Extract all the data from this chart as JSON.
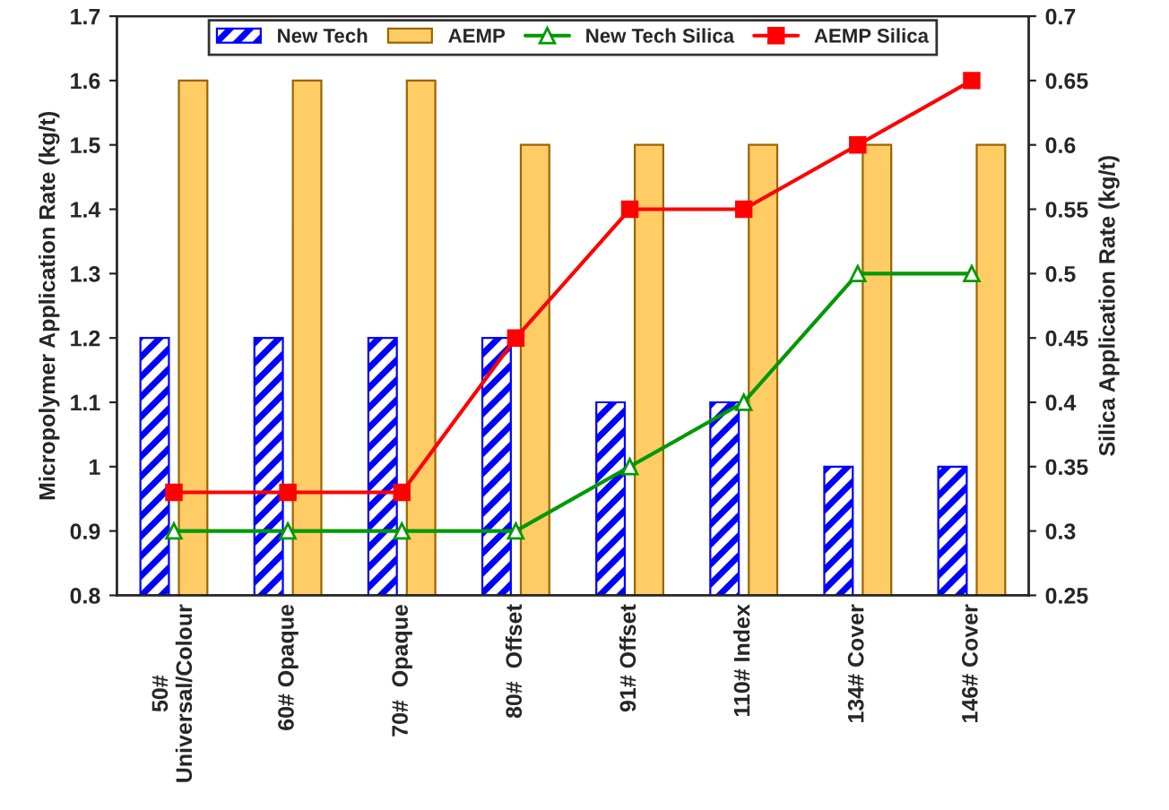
{
  "chart_data": {
    "type": "bar",
    "categories": [
      "50#\nUniversal/Colour",
      "60# Opaque",
      "70#  Opaque",
      "80#  Offset",
      "91# Offset",
      "110# Index",
      "134# Cover",
      "146# Cover"
    ],
    "ylabel": "Micropolymer Application Rate (kg/t)",
    "y2label": "Silica Application Rate (kg/t)",
    "ylim": [
      0.8,
      1.7
    ],
    "yticks": [
      0.8,
      0.9,
      1,
      1.1,
      1.2,
      1.3,
      1.4,
      1.5,
      1.6,
      1.7
    ],
    "y2lim": [
      0.25,
      0.7
    ],
    "y2ticks": [
      0.25,
      0.3,
      0.35,
      0.4,
      0.45,
      0.5,
      0.55,
      0.6,
      0.65,
      0.7
    ],
    "legend": "top",
    "grid": false,
    "series": [
      {
        "name": "New Tech",
        "color": "#0000ff",
        "values": [
          1.2,
          1.2,
          1.2,
          1.2,
          1.1,
          1.1,
          1.0,
          1.0
        ]
      },
      {
        "name": "AEMP",
        "color": "#ffcc66",
        "values": [
          1.6,
          1.6,
          1.6,
          1.5,
          1.5,
          1.5,
          1.5,
          1.5
        ]
      },
      {
        "name": "New Tech Silica",
        "type": "line",
        "axis": "y2",
        "marker": "triangle",
        "color": "#009900",
        "values": [
          0.3,
          0.3,
          0.3,
          0.3,
          0.35,
          0.4,
          0.5,
          0.5
        ]
      },
      {
        "name": "AEMP Silica",
        "type": "line",
        "axis": "y2",
        "marker": "square",
        "color": "#ff0000",
        "values": [
          0.33,
          0.33,
          0.33,
          0.45,
          0.55,
          0.55,
          0.6,
          0.65
        ]
      }
    ]
  }
}
